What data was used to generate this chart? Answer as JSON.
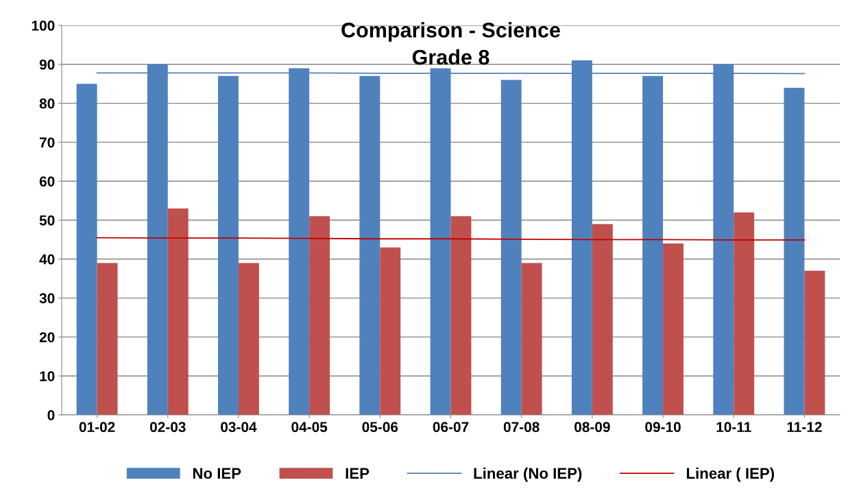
{
  "chart_data": {
    "type": "bar",
    "title": "Comparison - Science\nGrade 8",
    "categories": [
      "01-02",
      "02-03",
      "03-04",
      "04-05",
      "05-06",
      "06-07",
      "07-08",
      "08-09",
      "09-10",
      "10-11",
      "11-12"
    ],
    "series": [
      {
        "name": "No IEP",
        "color": "#4f81bd",
        "values": [
          85,
          90,
          87,
          89,
          87,
          89,
          86,
          91,
          87,
          90,
          84
        ]
      },
      {
        "name": "IEP",
        "color": "#c0504d",
        "values": [
          39,
          53,
          39,
          51,
          43,
          51,
          39,
          49,
          44,
          52,
          37
        ]
      },
      {
        "name": "Linear (No IEP)",
        "type": "line",
        "color": "#4f81bd",
        "values": [
          87.8,
          87.8,
          87.8,
          87.8,
          87.7,
          87.7,
          87.7,
          87.7,
          87.7,
          87.7,
          87.6
        ]
      },
      {
        "name": "Linear ( IEP)",
        "type": "line",
        "color": "#c00000",
        "values": [
          45.5,
          45.4,
          45.4,
          45.3,
          45.2,
          45.2,
          45.1,
          45.0,
          45.0,
          44.9,
          44.9
        ]
      }
    ],
    "ylim": [
      0,
      100
    ],
    "yticks": [
      0,
      10,
      20,
      30,
      40,
      50,
      60,
      70,
      80,
      90,
      100
    ],
    "grid": "y",
    "legend": "bottom",
    "marker": "none",
    "line_style": "solid"
  }
}
